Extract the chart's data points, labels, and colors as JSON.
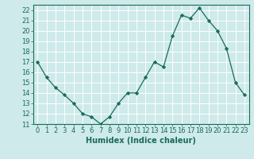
{
  "x": [
    0,
    1,
    2,
    3,
    4,
    5,
    6,
    7,
    8,
    9,
    10,
    11,
    12,
    13,
    14,
    15,
    16,
    17,
    18,
    19,
    20,
    21,
    22,
    23
  ],
  "y": [
    17.0,
    15.5,
    14.5,
    13.8,
    13.0,
    12.0,
    11.7,
    11.0,
    11.7,
    13.0,
    14.0,
    14.0,
    15.5,
    17.0,
    16.5,
    19.5,
    21.5,
    21.2,
    22.2,
    21.0,
    20.0,
    18.3,
    15.0,
    13.8
  ],
  "xlabel": "Humidex (Indice chaleur)",
  "ylim": [
    11,
    22.5
  ],
  "xlim": [
    -0.5,
    23.5
  ],
  "yticks": [
    11,
    12,
    13,
    14,
    15,
    16,
    17,
    18,
    19,
    20,
    21,
    22
  ],
  "xtick_labels": [
    "0",
    "1",
    "2",
    "3",
    "4",
    "5",
    "6",
    "7",
    "8",
    "9",
    "10",
    "11",
    "12",
    "13",
    "14",
    "15",
    "16",
    "17",
    "18",
    "19",
    "20",
    "21",
    "22",
    "23"
  ],
  "line_color": "#1a6b5a",
  "marker": "D",
  "marker_size": 2.2,
  "bg_color": "#ceeaea",
  "grid_color": "#ffffff",
  "axes_bg": "#ceeaea",
  "tick_font_size": 6.0,
  "xlabel_font_size": 7.0
}
